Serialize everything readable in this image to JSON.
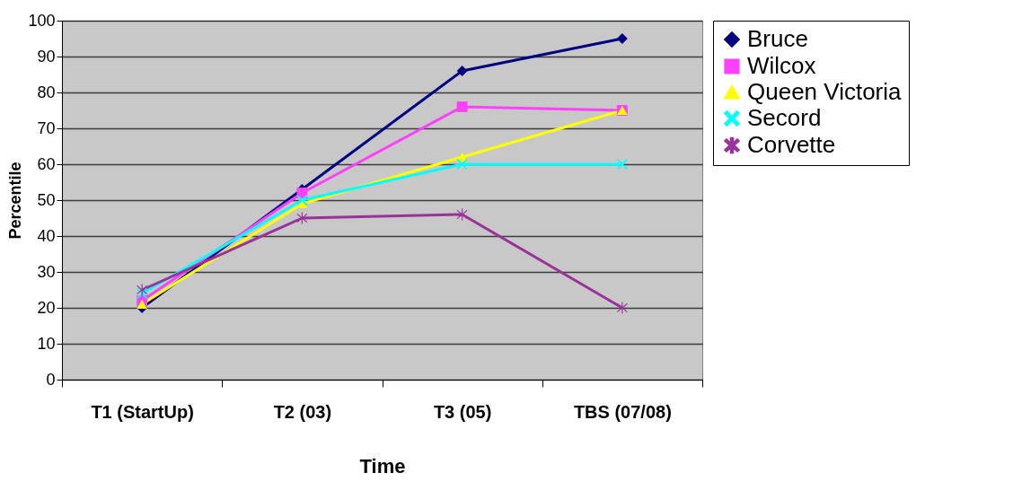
{
  "chart_data": {
    "type": "line",
    "xlabel": "Time",
    "ylabel": "Percentile",
    "categories": [
      "T1 (StartUp)",
      "T2 (03)",
      "T3 (05)",
      "TBS (07/08)"
    ],
    "ylim": [
      0,
      100
    ],
    "yticks": [
      0,
      10,
      20,
      30,
      40,
      50,
      60,
      70,
      80,
      90,
      100
    ],
    "grid": "y",
    "legend": "right",
    "series": [
      {
        "name": "Bruce",
        "color": "#000080",
        "marker": "diamond",
        "values": [
          20,
          53,
          86,
          95
        ]
      },
      {
        "name": "Wilcox",
        "color": "#ff40ff",
        "marker": "square",
        "values": [
          22,
          52,
          76,
          75
        ]
      },
      {
        "name": "Queen Victoria",
        "color": "#ffff00",
        "marker": "triangle",
        "values": [
          21,
          49,
          62,
          75
        ]
      },
      {
        "name": "Secord",
        "color": "#00ffff",
        "marker": "cross",
        "values": [
          24,
          50,
          60,
          60
        ]
      },
      {
        "name": "Corvette",
        "color": "#993399",
        "marker": "star",
        "values": [
          25,
          45,
          46,
          20
        ]
      }
    ]
  }
}
